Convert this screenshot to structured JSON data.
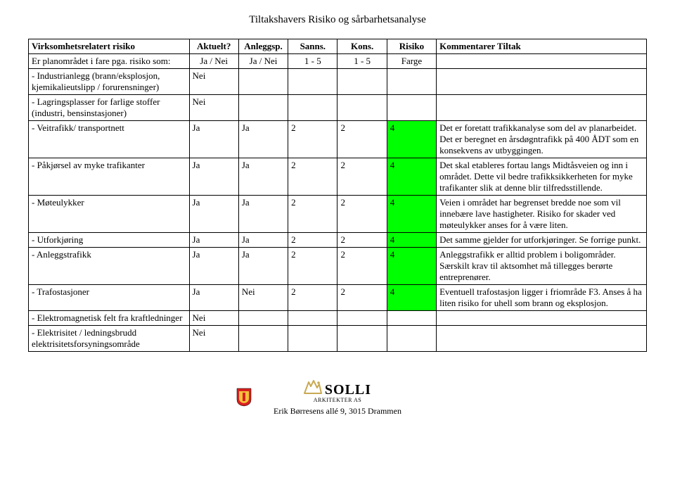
{
  "title": "Tiltakshavers Risiko og sårbarhetsanalyse",
  "columns": {
    "c0": "Virksomhetsrelatert risiko",
    "c1": "Aktuelt?",
    "c2": "Anleggsp.",
    "c3": "Sanns.",
    "c4": "Kons.",
    "c5": "Risiko",
    "c6": "Kommentarer Tiltak"
  },
  "row0": {
    "desc": "Er planområdet i fare pga. risiko som:",
    "akt": "Ja / Nei",
    "anl": "Ja / Nei",
    "sanns": "1 - 5",
    "kons": "1 - 5",
    "risk": "Farge",
    "komm": ""
  },
  "rows": [
    {
      "desc": "- Industrianlegg (brann/eksplosjon, kjemikalieutslipp / forurensninger)",
      "akt": "Nei",
      "anl": "",
      "sanns": "",
      "kons": "",
      "risk": "",
      "riskClass": "",
      "komm": ""
    },
    {
      "desc": "- Lagringsplasser for farlige stoffer (industri, bensinstasjoner)",
      "akt": "Nei",
      "anl": "",
      "sanns": "",
      "kons": "",
      "risk": "",
      "riskClass": "",
      "komm": ""
    },
    {
      "desc": "- Veitrafikk/ transportnett",
      "akt": "Ja",
      "anl": "Ja",
      "sanns": "2",
      "kons": "2",
      "risk": "4",
      "riskClass": "risk-green",
      "komm": "Det er foretatt trafikkanalyse som del av planarbeidet. Det er beregnet en årsdøgntrafikk på 400 ÅDT som en konsekvens av utbyggingen."
    },
    {
      "desc": "- Påkjørsel av myke trafikanter",
      "akt": "Ja",
      "anl": "Ja",
      "sanns": "2",
      "kons": "2",
      "risk": "4",
      "riskClass": "risk-green",
      "komm": "Det skal etableres fortau langs Midtåsveien og inn i området. Dette vil bedre trafikksikkerheten for myke trafikanter slik at denne blir tilfredsstillende."
    },
    {
      "desc": "- Møteulykker",
      "akt": "Ja",
      "anl": "Ja",
      "sanns": "2",
      "kons": "2",
      "risk": "4",
      "riskClass": "risk-green",
      "komm": "Veien i området har begrenset bredde noe som vil innebære lave hastigheter. Risiko for skader ved møteulykker anses for å være liten."
    },
    {
      "desc": "- Utforkjøring",
      "akt": "Ja",
      "anl": "Ja",
      "sanns": "2",
      "kons": "2",
      "risk": "4",
      "riskClass": "risk-green",
      "komm": "Det samme gjelder for utforkjøringer. Se forrige punkt."
    },
    {
      "desc": "- Anleggstrafikk",
      "akt": "Ja",
      "anl": "Ja",
      "sanns": "2",
      "kons": "2",
      "risk": "4",
      "riskClass": "risk-green",
      "komm": "Anleggstrafikk er alltid problem i boligområder. Særskilt krav til aktsomhet må tillegges berørte entreprenører."
    },
    {
      "desc": "- Trafostasjoner",
      "akt": "Ja",
      "anl": "Nei",
      "sanns": "2",
      "kons": "2",
      "risk": "4",
      "riskClass": "risk-green",
      "komm": "Eventuell trafostasjon ligger i friområde F3. Anses å ha liten risiko for uhell som brann og eksplosjon."
    },
    {
      "desc": "- Elektromagnetisk felt fra kraftledninger",
      "akt": "Nei",
      "anl": "",
      "sanns": "",
      "kons": "",
      "risk": "",
      "riskClass": "",
      "komm": ""
    },
    {
      "desc": "- Elektrisitet / ledningsbrudd elektrisitetsforsyningsområde",
      "akt": "Nei",
      "anl": "",
      "sanns": "",
      "kons": "",
      "risk": "",
      "riskClass": "",
      "komm": ""
    }
  ],
  "footer": {
    "brand": "SOLLI",
    "brand_sub": "ARKITEKTER AS",
    "address": "Erik Børresens allé 9, 3015 Drammen"
  },
  "colors": {
    "risk_green": "#00ff00",
    "border": "#000000",
    "shield_red": "#d8201f",
    "shield_gold": "#f3c13a",
    "solli_gold": "#c9a954"
  }
}
